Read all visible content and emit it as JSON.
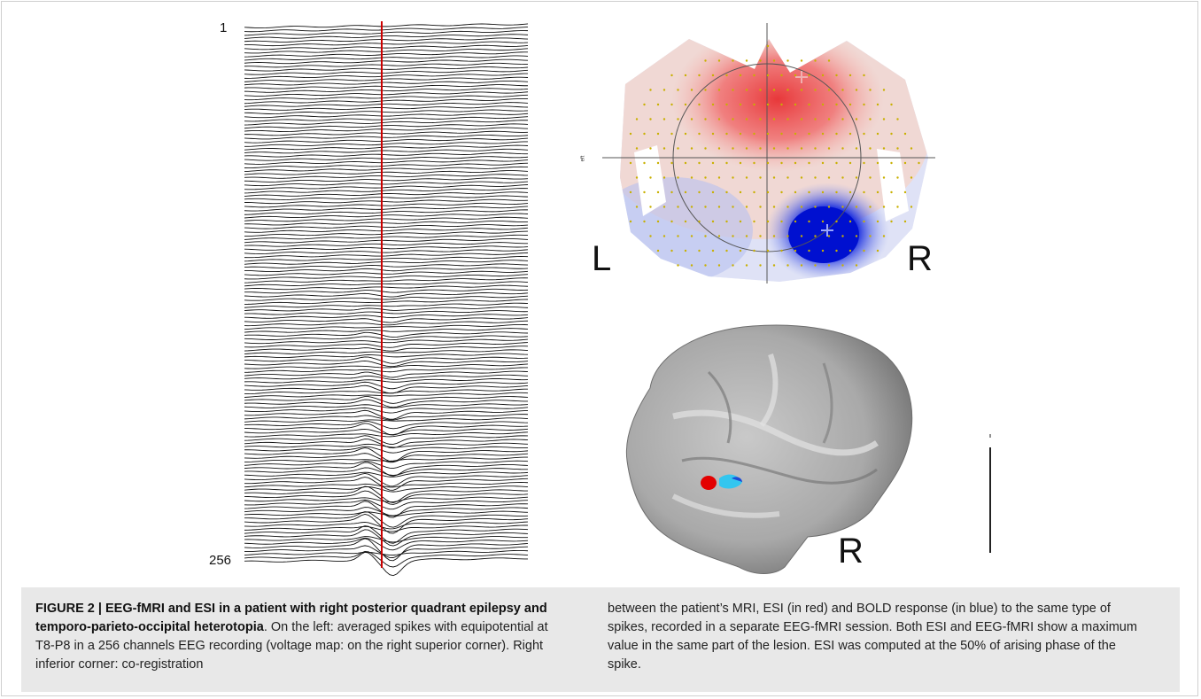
{
  "figure": {
    "eeg": {
      "first_channel_label": "1",
      "last_channel_label": "256",
      "channel_count": 256
    },
    "voltage_map": {
      "left_label": "L",
      "right_label": "R",
      "tiny_legend": "eft"
    },
    "brain": {
      "side_label": "R"
    }
  },
  "caption": {
    "title": "FIGURE 2 | EEG-fMRI and ESI in a patient with right posterior quadrant epilepsy and temporo-parieto-occipital heterotopia",
    "body_left": ". On the left: averaged spikes with equipotential at T8-P8 in a 256 channels EEG recording (voltage map: on the right superior corner). Right inferior corner: co-registration",
    "body_right": "between the patient’s MRI, ESI (in red) and BOLD response (in blue) to the same type of spikes, recorded in a separate EEG-fMRI session. Both ESI and EEG-fMRI show a maximum value in the same part of the lesion. ESI was computed at the 50% of arising phase of the spike."
  },
  "colors": {
    "marker_line": "#cc0000",
    "positive": "#e8383a",
    "negative": "#0010d0",
    "caption_bg": "#e8e8e8"
  }
}
